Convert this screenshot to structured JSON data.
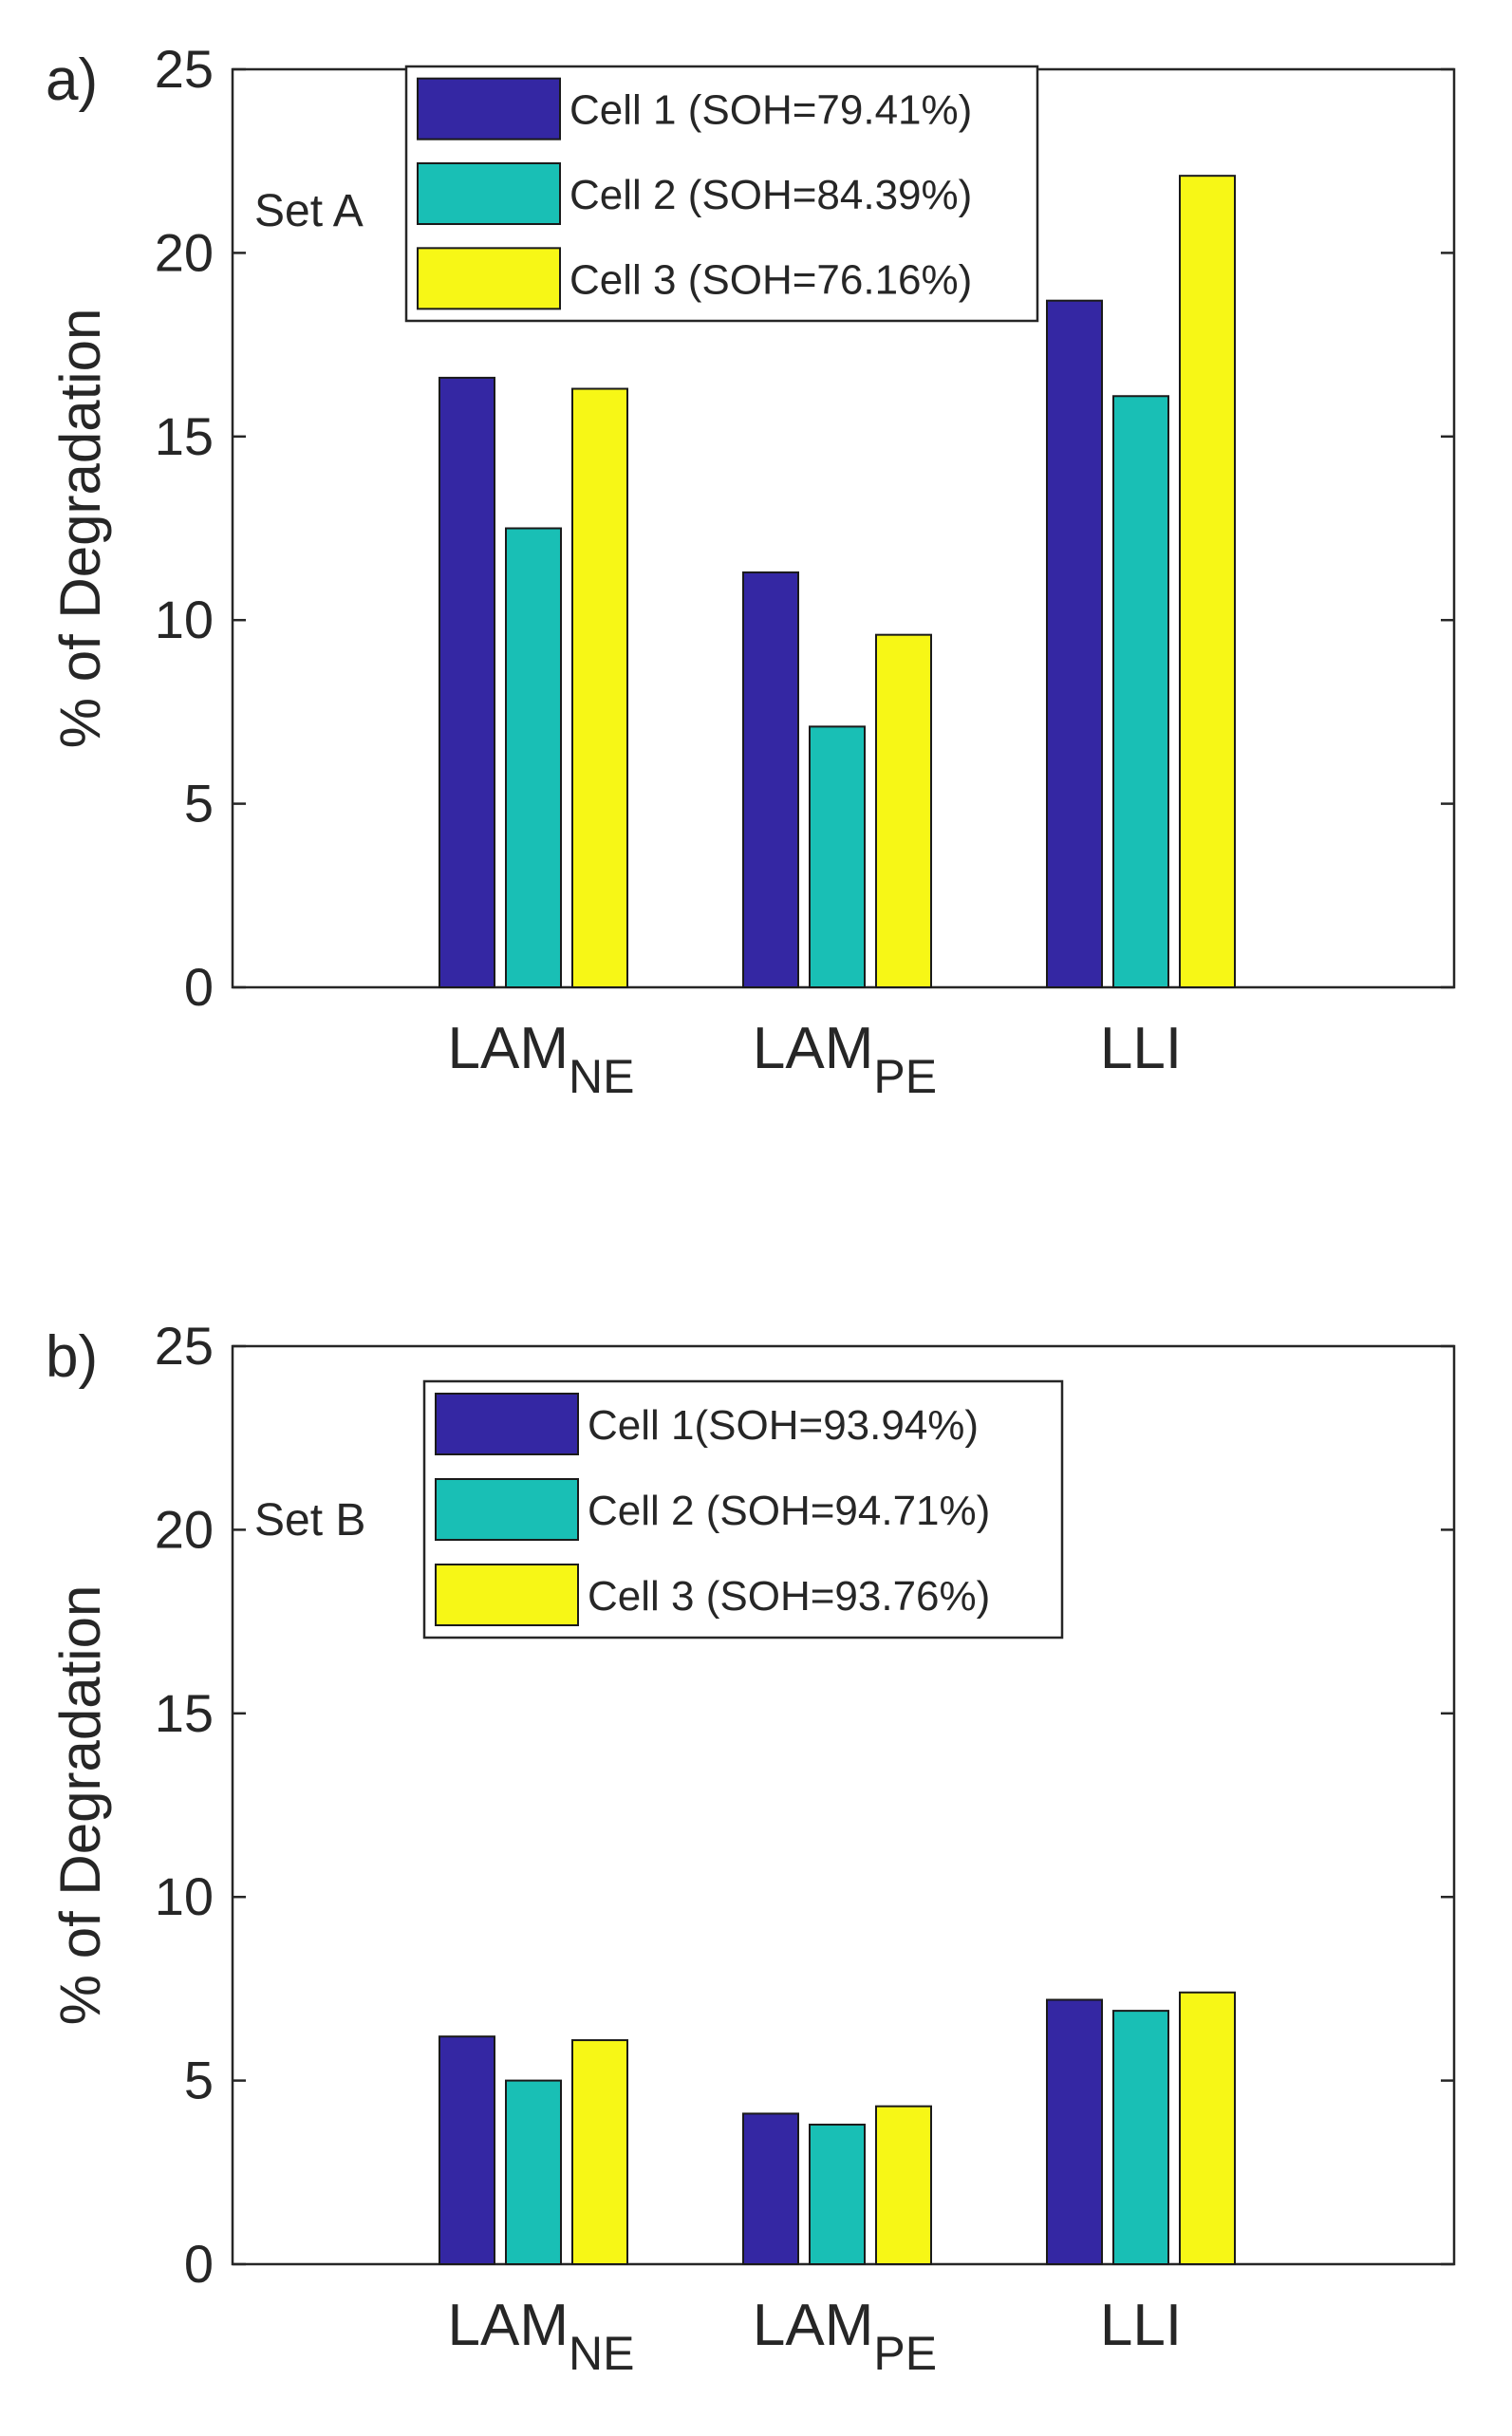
{
  "chart_data": [
    {
      "type": "bar",
      "panel_label": "a)",
      "annotation": "Set A",
      "ylabel": "% of Degradation",
      "ylim": [
        0,
        25
      ],
      "yticks": [
        0,
        5,
        10,
        15,
        20,
        25
      ],
      "categories": [
        {
          "base": "LAM",
          "sub": "NE"
        },
        {
          "base": "LAM",
          "sub": "PE"
        },
        {
          "base": "LLI",
          "sub": ""
        }
      ],
      "series": [
        {
          "name": "Cell 1 (SOH=79.41%)",
          "color": "#3427a3",
          "values": [
            16.6,
            11.3,
            18.7
          ]
        },
        {
          "name": "Cell 2 (SOH=84.39%)",
          "color": "#19bfb5",
          "values": [
            12.5,
            7.1,
            16.1
          ]
        },
        {
          "name": "Cell 3 (SOH=76.16%)",
          "color": "#f7f716",
          "values": [
            16.3,
            9.6,
            22.1
          ]
        }
      ],
      "legend_position": "top-center",
      "grid": false
    },
    {
      "type": "bar",
      "panel_label": "b)",
      "annotation": "Set B",
      "ylabel": "% of Degradation",
      "ylim": [
        0,
        25
      ],
      "yticks": [
        0,
        5,
        10,
        15,
        20,
        25
      ],
      "categories": [
        {
          "base": "LAM",
          "sub": "NE"
        },
        {
          "base": "LAM",
          "sub": "PE"
        },
        {
          "base": "LLI",
          "sub": ""
        }
      ],
      "series": [
        {
          "name": "Cell 1(SOH=93.94%)",
          "color": "#3427a3",
          "values": [
            6.2,
            4.1,
            7.2
          ]
        },
        {
          "name": "Cell 2 (SOH=94.71%)",
          "color": "#19bfb5",
          "values": [
            5.0,
            3.8,
            6.9
          ]
        },
        {
          "name": "Cell 3 (SOH=93.76%)",
          "color": "#f7f716",
          "values": [
            6.1,
            4.3,
            7.4
          ]
        }
      ],
      "legend_position": "top-center",
      "grid": false
    }
  ]
}
